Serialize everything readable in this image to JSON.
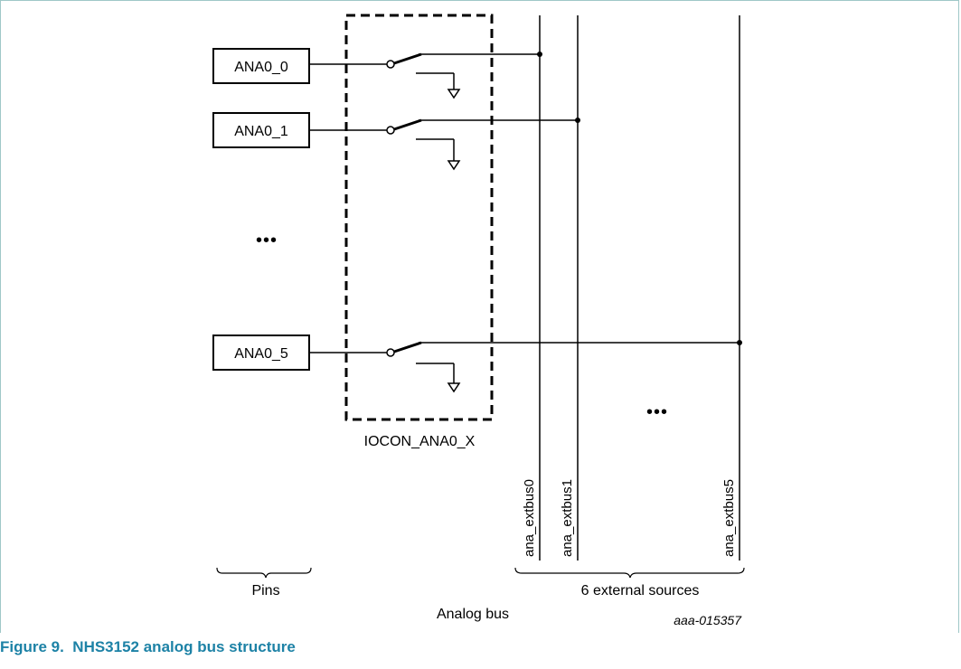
{
  "pins": [
    "ANA0_0",
    "ANA0_1",
    "ANA0_5"
  ],
  "ellipsis": "•••",
  "iocon_label": "IOCON_ANA0_X",
  "buses": [
    "ana_extbus0",
    "ana_extbus1",
    "ana_extbus5"
  ],
  "pins_label": "Pins",
  "sources_label": "6 external sources",
  "analog_bus_label": "Analog bus",
  "figure_id": "aaa-015357",
  "caption": "Figure 9.  NHS3152 analog bus structure"
}
